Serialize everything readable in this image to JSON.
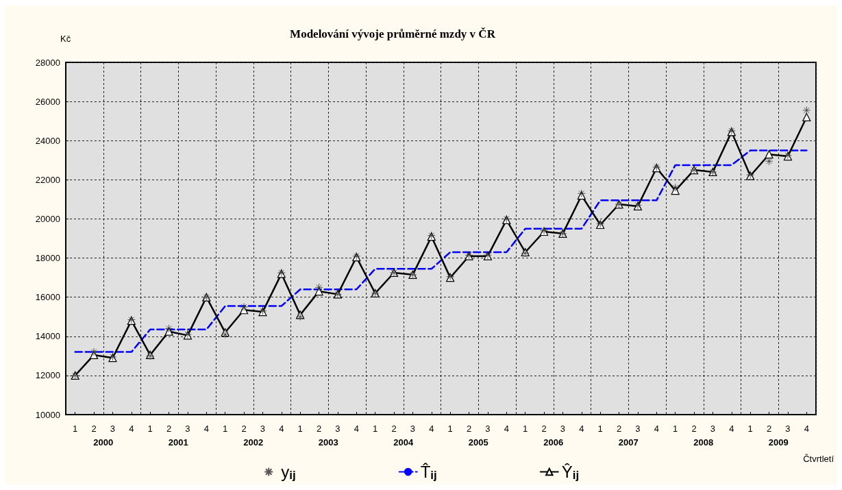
{
  "chart_data": {
    "type": "line",
    "title": "Modelování vývoje průměrné mzdy v ČR",
    "ylabel": "Kč",
    "xlabel": "Čtvrtletí",
    "categories": [
      "1",
      "2",
      "3",
      "4",
      "1",
      "2",
      "3",
      "4",
      "1",
      "2",
      "3",
      "4",
      "1",
      "2",
      "3",
      "4",
      "1",
      "2",
      "3",
      "4",
      "1",
      "2",
      "3",
      "4",
      "1",
      "2",
      "3",
      "4",
      "1",
      "2",
      "3",
      "4",
      "1",
      "2",
      "3",
      "4",
      "1",
      "2",
      "3",
      "4"
    ],
    "annotations": [
      "2000",
      "2001",
      "2002",
      "2003",
      "2004",
      "2005",
      "2006",
      "2007",
      "2008",
      "2009"
    ],
    "series": [
      {
        "name": "y$_{ij}$",
        "type": "scatter",
        "marker": "cross",
        "color": "#303030",
        "values": [
          12000,
          13200,
          12950,
          14850,
          13000,
          14400,
          14100,
          16000,
          14100,
          15500,
          15300,
          17250,
          15000,
          16500,
          16150,
          18100,
          16200,
          17250,
          17150,
          19150,
          17050,
          18150,
          18150,
          20000,
          18250,
          19400,
          19250,
          21300,
          19750,
          20750,
          20700,
          22650,
          21600,
          22500,
          22400,
          24500,
          22250,
          22950,
          23250,
          25550
        ]
      },
      {
        "name": "T̂$_{ij}$",
        "type": "line",
        "marker": "none",
        "line_style": "dashed",
        "color": "#0000ff",
        "values": [
          13200,
          13200,
          13200,
          13200,
          14350,
          14350,
          14350,
          14350,
          15550,
          15550,
          15550,
          15550,
          16400,
          16400,
          16400,
          16400,
          17450,
          17450,
          17450,
          17450,
          18300,
          18300,
          18300,
          18300,
          19500,
          19500,
          19500,
          19500,
          20950,
          20950,
          20950,
          20950,
          22750,
          22750,
          22750,
          22750,
          23500,
          23500,
          23500,
          23500
        ]
      },
      {
        "name": "Ŷ$_{ij}$",
        "type": "line",
        "marker": "triangle",
        "line_style": "solid",
        "color": "#000000",
        "values": [
          12000,
          13050,
          12900,
          14800,
          13050,
          14250,
          14050,
          16000,
          14200,
          15350,
          15250,
          17200,
          15100,
          16300,
          16150,
          18050,
          16200,
          17250,
          17150,
          19100,
          17000,
          18100,
          18100,
          19950,
          18300,
          19350,
          19250,
          21200,
          19700,
          20750,
          20650,
          22600,
          21450,
          22500,
          22400,
          24450,
          22200,
          23300,
          23200,
          25200
        ]
      }
    ],
    "ylim": [
      10000,
      28000
    ],
    "yticks": [
      10000,
      12000,
      14000,
      16000,
      18000,
      20000,
      22000,
      24000,
      26000,
      28000
    ],
    "grid": true,
    "legend": "bottom"
  }
}
